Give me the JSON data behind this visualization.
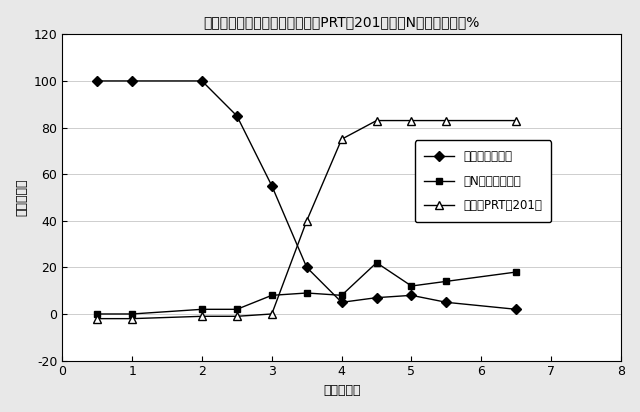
{
  "title": "変換中のプロタンパク質、成熟PRT－201およびN末端変異体の%",
  "xlabel": "時間（時）",
  "ylabel": "バーセント",
  "xlim": [
    0,
    8
  ],
  "ylim": [
    -20,
    120
  ],
  "xticks": [
    0,
    1,
    2,
    3,
    4,
    5,
    6,
    7,
    8
  ],
  "yticks": [
    -20,
    0,
    20,
    40,
    60,
    80,
    100,
    120
  ],
  "series": [
    {
      "label": "プロタンパク質",
      "marker": "D",
      "linestyle": "-",
      "color": "#000000",
      "markersize": 5,
      "markerfacecolor": "#000000",
      "x": [
        0.5,
        1.0,
        2.0,
        2.5,
        3.0,
        3.5,
        4.0,
        4.5,
        5.0,
        5.5,
        6.5
      ],
      "y": [
        100,
        100,
        100,
        85,
        55,
        20,
        5,
        7,
        8,
        5,
        2
      ]
    },
    {
      "label": "『N末端変異体』",
      "marker": "s",
      "linestyle": "-",
      "color": "#000000",
      "markersize": 5,
      "markerfacecolor": "#000000",
      "x": [
        0.5,
        1.0,
        2.0,
        2.5,
        3.0,
        3.5,
        4.0,
        4.5,
        5.0,
        5.5,
        6.5
      ],
      "y": [
        0,
        0,
        2,
        2,
        8,
        9,
        8,
        22,
        12,
        14,
        18
      ]
    },
    {
      "label": "『成熟PRT－201』",
      "marker": "^",
      "linestyle": "-",
      "color": "#000000",
      "markersize": 6,
      "markerfacecolor": "#ffffff",
      "x": [
        0.5,
        1.0,
        2.0,
        2.5,
        3.0,
        3.5,
        4.0,
        4.5,
        5.0,
        5.5,
        6.5
      ],
      "y": [
        -2,
        -2,
        -1,
        -1,
        0,
        40,
        75,
        83,
        83,
        83,
        83
      ]
    }
  ],
  "legend_loc": "center right",
  "background_color": "#e8e8e8",
  "plot_bg_color": "#ffffff",
  "title_fontsize": 10,
  "label_fontsize": 9,
  "tick_fontsize": 9,
  "legend_labels": [
    "プロタンパク質",
    "『N末端変異体』",
    "『成熟PRT－201』"
  ]
}
